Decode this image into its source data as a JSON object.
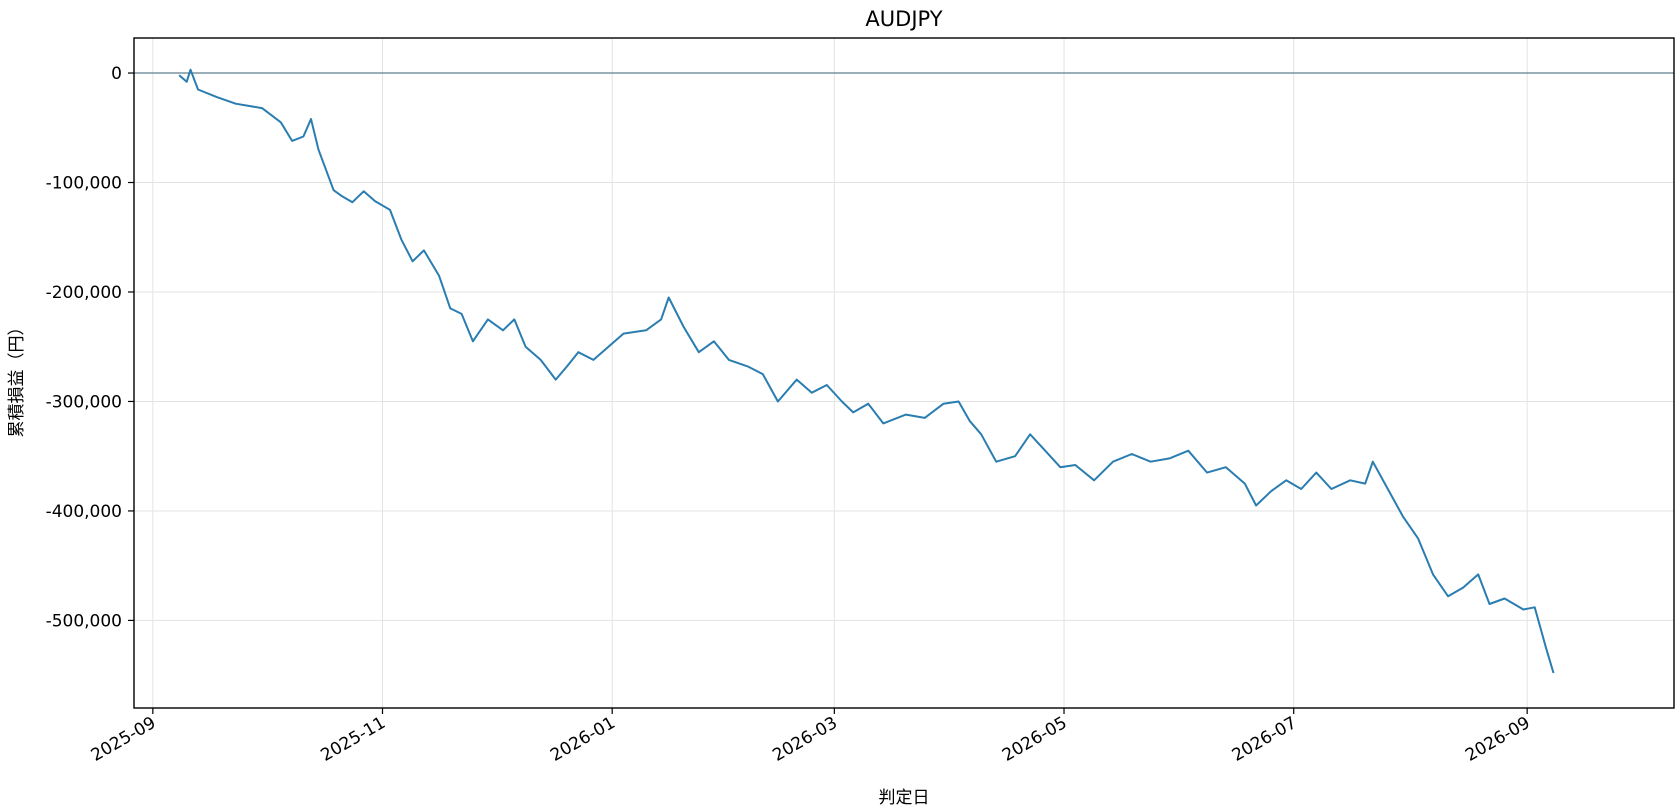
{
  "chart_data": {
    "type": "line",
    "title": "AUDJPY",
    "xlabel": "判定日",
    "ylabel": "累積損益（円）",
    "xlim": [
      "2025-08-27",
      "2026-10-10"
    ],
    "ylim": [
      -580000,
      32000
    ],
    "x_ticks": [
      "2025-09-01",
      "2025-11-01",
      "2026-01-01",
      "2026-03-01",
      "2026-05-01",
      "2026-07-01",
      "2026-09-01"
    ],
    "x_tick_labels": [
      "2025-09",
      "2025-11",
      "2026-01",
      "2026-03",
      "2026-05",
      "2026-07",
      "2026-09"
    ],
    "y_ticks": [
      0,
      -100000,
      -200000,
      -300000,
      -400000,
      -500000
    ],
    "y_tick_labels": [
      "0",
      "-100,000",
      "-200,000",
      "-300,000",
      "-400,000",
      "-500,000"
    ],
    "grid": true,
    "reference_line_y": 0,
    "colors": {
      "series": "#2a7db0",
      "zero_line": "#5f7f8f",
      "grid": "#e3e3e3"
    },
    "series": [
      {
        "x": [
          "2025-09-08",
          "2025-09-10",
          "2025-09-11",
          "2025-09-13",
          "2025-09-18",
          "2025-09-23",
          "2025-09-30",
          "2025-10-05",
          "2025-10-08",
          "2025-10-11",
          "2025-10-13",
          "2025-10-15",
          "2025-10-19",
          "2025-10-21",
          "2025-10-24",
          "2025-10-27",
          "2025-10-30",
          "2025-11-03",
          "2025-11-06",
          "2025-11-09",
          "2025-11-12",
          "2025-11-16",
          "2025-11-19",
          "2025-11-22",
          "2025-11-25",
          "2025-11-29",
          "2025-12-03",
          "2025-12-06",
          "2025-12-09",
          "2025-12-13",
          "2025-12-17",
          "2025-12-20",
          "2025-12-23",
          "2025-12-27",
          "2026-01-04",
          "2026-01-10",
          "2026-01-14",
          "2026-01-16",
          "2026-01-20",
          "2026-01-24",
          "2026-01-28",
          "2026-02-01",
          "2026-02-06",
          "2026-02-10",
          "2026-02-14",
          "2026-02-19",
          "2026-02-23",
          "2026-02-27",
          "2026-03-03",
          "2026-03-06",
          "2026-03-10",
          "2026-03-14",
          "2026-03-20",
          "2026-03-25",
          "2026-03-30",
          "2026-04-03",
          "2026-04-06",
          "2026-04-09",
          "2026-04-13",
          "2026-04-18",
          "2026-04-22",
          "2026-04-26",
          "2026-04-30",
          "2026-05-04",
          "2026-05-09",
          "2026-05-14",
          "2026-05-19",
          "2026-05-24",
          "2026-05-29",
          "2026-06-03",
          "2026-06-08",
          "2026-06-13",
          "2026-06-18",
          "2026-06-21",
          "2026-06-25",
          "2026-06-29",
          "2026-07-03",
          "2026-07-07",
          "2026-07-11",
          "2026-07-16",
          "2026-07-20",
          "2026-07-22",
          "2026-07-26",
          "2026-07-30",
          "2026-08-03",
          "2026-08-07",
          "2026-08-11",
          "2026-08-15",
          "2026-08-19",
          "2026-08-22",
          "2026-08-26",
          "2026-08-31",
          "2026-09-03",
          "2026-09-06",
          "2026-09-08"
        ],
        "y": [
          -2000,
          -8000,
          3000,
          -15000,
          -22000,
          -28000,
          -32000,
          -45000,
          -62000,
          -58000,
          -42000,
          -70000,
          -107000,
          -112000,
          -118000,
          -108000,
          -117000,
          -125000,
          -152000,
          -172000,
          -162000,
          -185000,
          -215000,
          -220000,
          -245000,
          -225000,
          -235000,
          -225000,
          -250000,
          -262000,
          -280000,
          -268000,
          -255000,
          -262000,
          -238000,
          -235000,
          -225000,
          -205000,
          -232000,
          -255000,
          -245000,
          -262000,
          -268000,
          -275000,
          -300000,
          -280000,
          -292000,
          -285000,
          -300000,
          -310000,
          -302000,
          -320000,
          -312000,
          -315000,
          -302000,
          -300000,
          -318000,
          -330000,
          -355000,
          -350000,
          -330000,
          -345000,
          -360000,
          -358000,
          -372000,
          -355000,
          -348000,
          -355000,
          -352000,
          -345000,
          -365000,
          -360000,
          -375000,
          -395000,
          -382000,
          -372000,
          -380000,
          -365000,
          -380000,
          -372000,
          -375000,
          -355000,
          -380000,
          -405000,
          -425000,
          -458000,
          -478000,
          -470000,
          -458000,
          -485000,
          -480000,
          -490000,
          -488000,
          -525000,
          -548000
        ]
      }
    ]
  }
}
